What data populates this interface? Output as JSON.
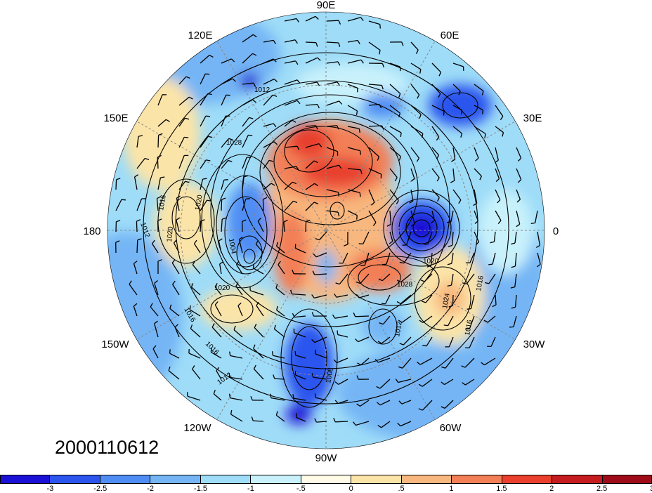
{
  "timestamp": "2000110612",
  "lon_labels": {
    "e90": "90E",
    "e60": "60E",
    "e30": "30E",
    "zero": "0",
    "w30": "30W",
    "w60": "60W",
    "w90": "90W",
    "w120": "120W",
    "w150": "150W",
    "d180": "180",
    "e150": "150E",
    "e120": "120E"
  },
  "isobar_labels": [
    "1012",
    "1016",
    "1020",
    "1020",
    "1020",
    "1024",
    "1028",
    "1028",
    "1016",
    "1016",
    "1012",
    "1012",
    "1016",
    "1016",
    "1012",
    "1004",
    "1008",
    "1020"
  ],
  "colorbar": {
    "colors": [
      "#1a10d6",
      "#2c55ee",
      "#4f8df4",
      "#75b5f5",
      "#9edcf8",
      "#c8f1fb",
      "#fffbe6",
      "#fbe4a8",
      "#f8b77e",
      "#f37f57",
      "#e8402d",
      "#c41c1f",
      "#9e0b19"
    ],
    "labels": [
      "-3",
      "-2.5",
      "-2",
      "-1.5",
      "-1",
      "-.5",
      "0",
      ".5",
      "1",
      "1.5",
      "2",
      "2.5",
      "3"
    ]
  }
}
